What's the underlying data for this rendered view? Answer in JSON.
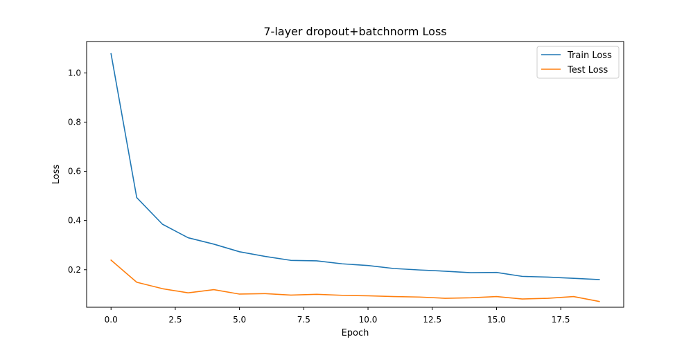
{
  "chart_data": {
    "type": "line",
    "title": "7-layer dropout+batchnorm Loss",
    "xlabel": "Epoch",
    "ylabel": "Loss",
    "xlim": [
      -0.95,
      19.95
    ],
    "ylim": [
      0.0475,
      1.1275
    ],
    "xticks": [
      0.0,
      2.5,
      5.0,
      7.5,
      10.0,
      12.5,
      15.0,
      17.5
    ],
    "xtick_labels": [
      "0.0",
      "2.5",
      "5.0",
      "7.5",
      "10.0",
      "12.5",
      "15.0",
      "17.5"
    ],
    "yticks": [
      0.2,
      0.4,
      0.6,
      0.8,
      1.0
    ],
    "ytick_labels": [
      "0.2",
      "0.4",
      "0.6",
      "0.8",
      "1.0"
    ],
    "grid": false,
    "legend_position": "top-right",
    "x": [
      0,
      1,
      2,
      3,
      4,
      5,
      6,
      7,
      8,
      9,
      10,
      11,
      12,
      13,
      14,
      15,
      16,
      17,
      18,
      19
    ],
    "series": [
      {
        "name": "Train Loss",
        "color": "#1f77b4",
        "values": [
          1.078,
          0.493,
          0.385,
          0.33,
          0.304,
          0.273,
          0.254,
          0.238,
          0.236,
          0.224,
          0.217,
          0.205,
          0.199,
          0.194,
          0.188,
          0.189,
          0.173,
          0.17,
          0.165,
          0.16
        ]
      },
      {
        "name": "Test Loss",
        "color": "#ff7f0e",
        "values": [
          0.239,
          0.149,
          0.123,
          0.106,
          0.119,
          0.101,
          0.103,
          0.097,
          0.1,
          0.096,
          0.094,
          0.091,
          0.089,
          0.084,
          0.086,
          0.091,
          0.081,
          0.084,
          0.091,
          0.071
        ]
      }
    ]
  }
}
